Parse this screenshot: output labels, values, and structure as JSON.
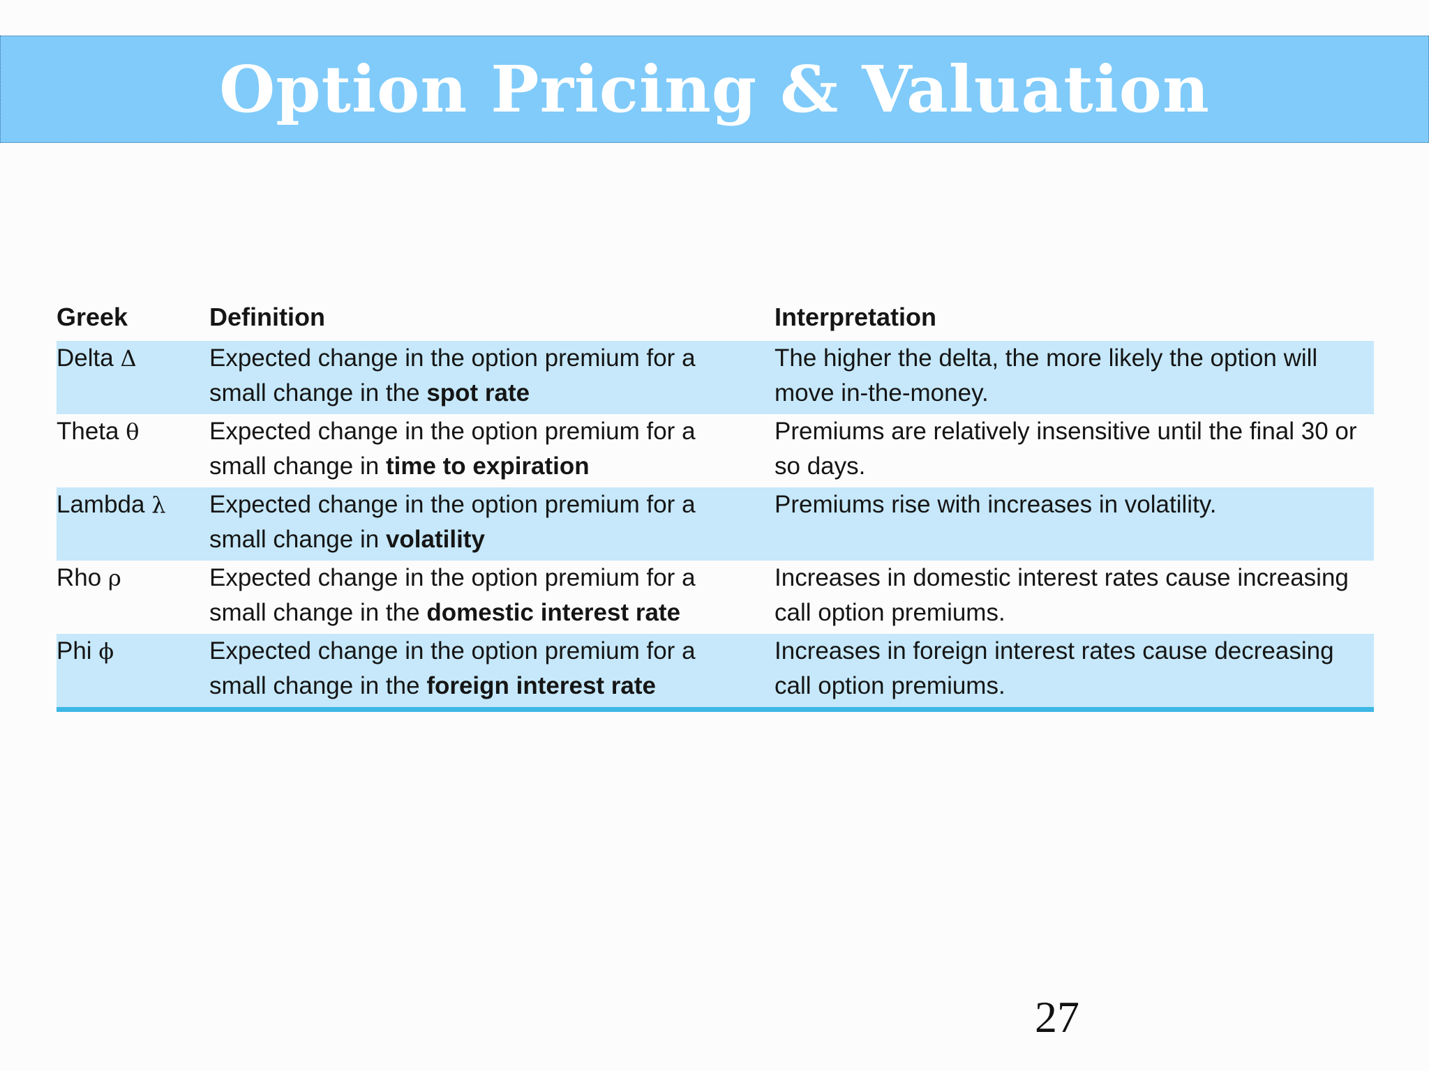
{
  "slide": {
    "title": "Option Pricing & Valuation",
    "page_number": "27"
  },
  "table": {
    "headers": [
      "Greek",
      "Definition",
      "Interpretation"
    ],
    "rows": [
      {
        "greek_name": "Delta",
        "greek_symbol": "Δ",
        "def_line1": "Expected change in the option premium for a",
        "def_line2_prefix": "small change in the",
        "def_line2_keyword": "spot rate",
        "interp_line1": "The higher the delta, the more likely the option will",
        "interp_line2": "move in-the-money."
      },
      {
        "greek_name": "Theta",
        "greek_symbol": "θ",
        "def_line1": "Expected change in the option premium for a",
        "def_line2_prefix": "small change in",
        "def_line2_keyword": "time to expiration",
        "interp_line1": "Premiums are relatively insensitive until the final 30 or",
        "interp_line2": "so days."
      },
      {
        "greek_name": "Lambda",
        "greek_symbol": "λ",
        "def_line1": "Expected change in the option premium for a",
        "def_line2_prefix": "small change in",
        "def_line2_keyword": "volatility",
        "interp_line1": "Premiums rise with increases in volatility.",
        "interp_line2": ""
      },
      {
        "greek_name": "Rho",
        "greek_symbol": "ρ",
        "def_line1": "Expected change in the option premium for a",
        "def_line2_prefix": "small change in the",
        "def_line2_keyword": "domestic interest rate",
        "interp_line1": "Increases in domestic interest rates cause increasing",
        "interp_line2": "call option premiums."
      },
      {
        "greek_name": "Phi",
        "greek_symbol": "ϕ",
        "def_line1": "Expected change in the option premium for a",
        "def_line2_prefix": "small change in the",
        "def_line2_keyword": "foreign interest rate",
        "interp_line1": "Increases in foreign interest rates cause decreasing",
        "interp_line2": "call option premiums."
      }
    ]
  },
  "colors": {
    "banner_background": "#80cbfa",
    "row_shading": "#c6e8fa",
    "table_bottom_rule": "#3db7e6",
    "title_text": "#ffffff"
  }
}
